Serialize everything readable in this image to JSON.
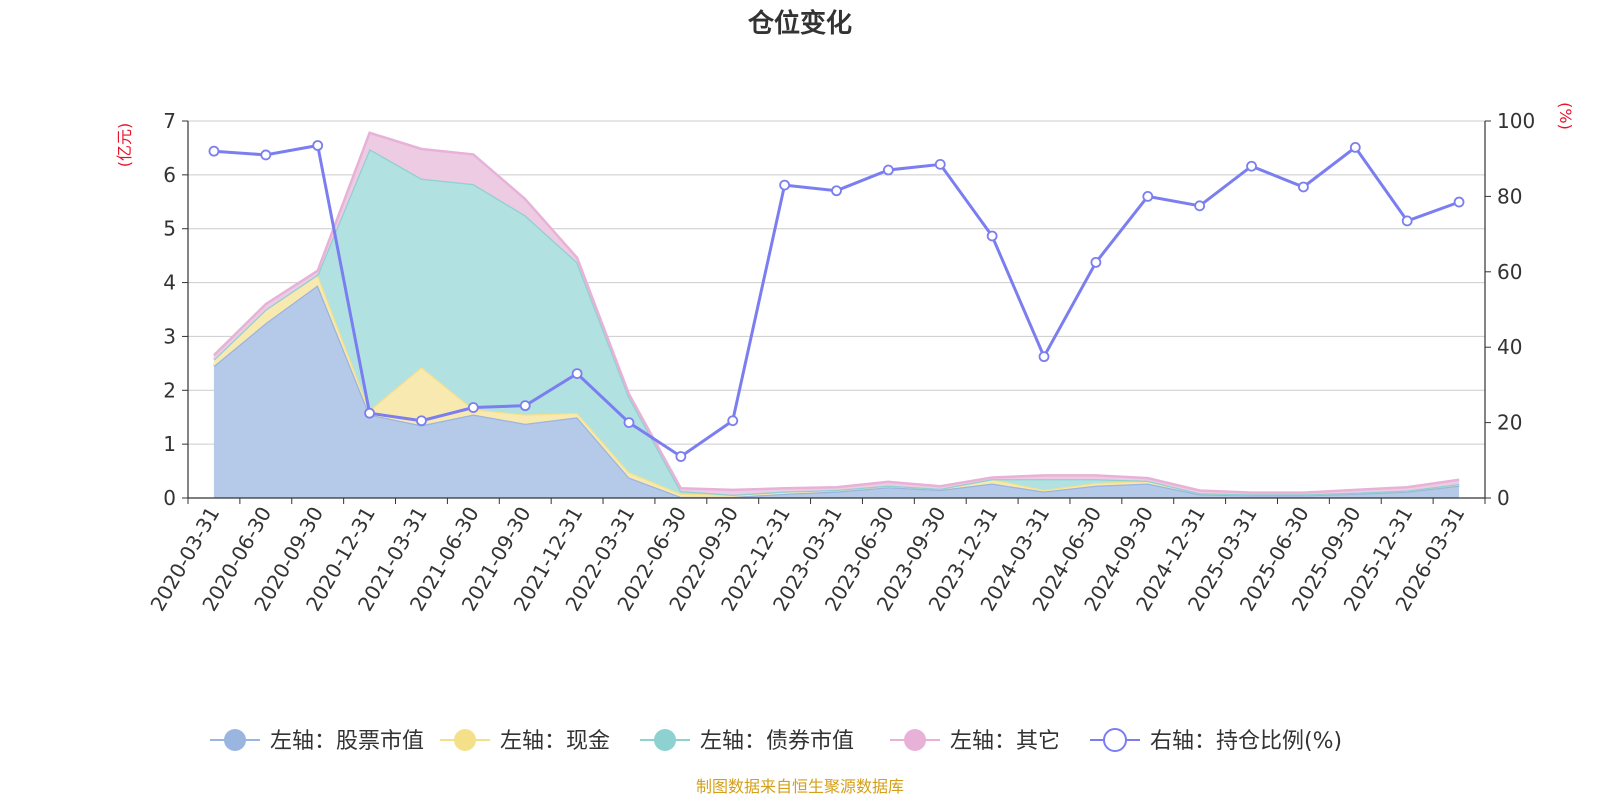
{
  "chart_data": {
    "type": "area",
    "title": "仓位变化",
    "source": "制图数据来自恒生聚源数据库",
    "y_left_unit": "(亿元)",
    "y_right_unit": "(%)",
    "y_left_range": [
      0,
      7
    ],
    "y_left_ticks": [
      0,
      1,
      2,
      3,
      4,
      5,
      6,
      7
    ],
    "y_right_range": [
      0,
      100
    ],
    "y_right_ticks": [
      0,
      20,
      40,
      60,
      80,
      100
    ],
    "grid": true,
    "legend_position": "bottom",
    "categories": [
      "2020-03-31",
      "2020-06-30",
      "2020-09-30",
      "2020-12-31",
      "2021-03-31",
      "2021-06-30",
      "2021-09-30",
      "2021-12-31",
      "2022-03-31",
      "2022-06-30",
      "2022-09-30",
      "2022-12-31",
      "2023-03-31",
      "2023-06-30",
      "2023-09-30",
      "2023-12-31",
      "2024-03-31",
      "2024-06-30",
      "2024-09-30",
      "2024-12-31",
      "2025-03-31",
      "2025-06-30",
      "2025-09-30",
      "2025-12-31",
      "2026-03-31"
    ],
    "stacked_series": [
      {
        "name": "左轴：股票市值",
        "axis": "left",
        "color": "#9ab5e0",
        "fill": "#b5c9e8",
        "values": [
          2.45,
          3.25,
          3.95,
          1.55,
          1.35,
          1.55,
          1.38,
          1.5,
          0.38,
          0.02,
          0.02,
          0.08,
          0.12,
          0.2,
          0.15,
          0.27,
          0.12,
          0.23,
          0.27,
          0.07,
          0.05,
          0.05,
          0.08,
          0.12,
          0.23
        ]
      },
      {
        "name": "左轴：现金",
        "axis": "left",
        "color": "#f5e08a",
        "fill": "#f8e9b0",
        "values": [
          0.12,
          0.25,
          0.2,
          0.08,
          1.08,
          0.1,
          0.17,
          0.08,
          0.1,
          0.06,
          0.04,
          0.04,
          0.03,
          0.03,
          0.02,
          0.08,
          0.03,
          0.05,
          0.05,
          0.02,
          0.02,
          0.02,
          0.02,
          0.02,
          0.03
        ]
      },
      {
        "name": "左轴：债券市值",
        "axis": "left",
        "color": "#8ed1d1",
        "fill": "#b2e1e1",
        "values": [
          0,
          0,
          0,
          4.85,
          3.5,
          4.18,
          3.7,
          2.8,
          1.4,
          0.05,
          0,
          0,
          0,
          0,
          0,
          0,
          0.2,
          0.07,
          0,
          0,
          0,
          0,
          0,
          0,
          0
        ]
      },
      {
        "name": "左轴：其它",
        "axis": "left",
        "color": "#e8b2d8",
        "fill": "#eccbe3",
        "values": [
          0.08,
          0.1,
          0.07,
          0.3,
          0.55,
          0.55,
          0.3,
          0.08,
          0.05,
          0.05,
          0.09,
          0.06,
          0.05,
          0.07,
          0.05,
          0.03,
          0.07,
          0.07,
          0.05,
          0.05,
          0.03,
          0.03,
          0.05,
          0.06,
          0.08
        ]
      }
    ],
    "line_series": {
      "name": "右轴：持仓比例(%)",
      "axis": "right",
      "color": "#7b7ef0",
      "values": [
        92,
        91,
        93.5,
        22.5,
        20.5,
        24,
        24.5,
        33,
        20,
        11,
        20.5,
        83,
        81.5,
        87,
        88.5,
        69.5,
        37.5,
        62.5,
        80,
        77.5,
        88,
        82.5,
        93,
        73.5,
        78.5
      ]
    }
  }
}
